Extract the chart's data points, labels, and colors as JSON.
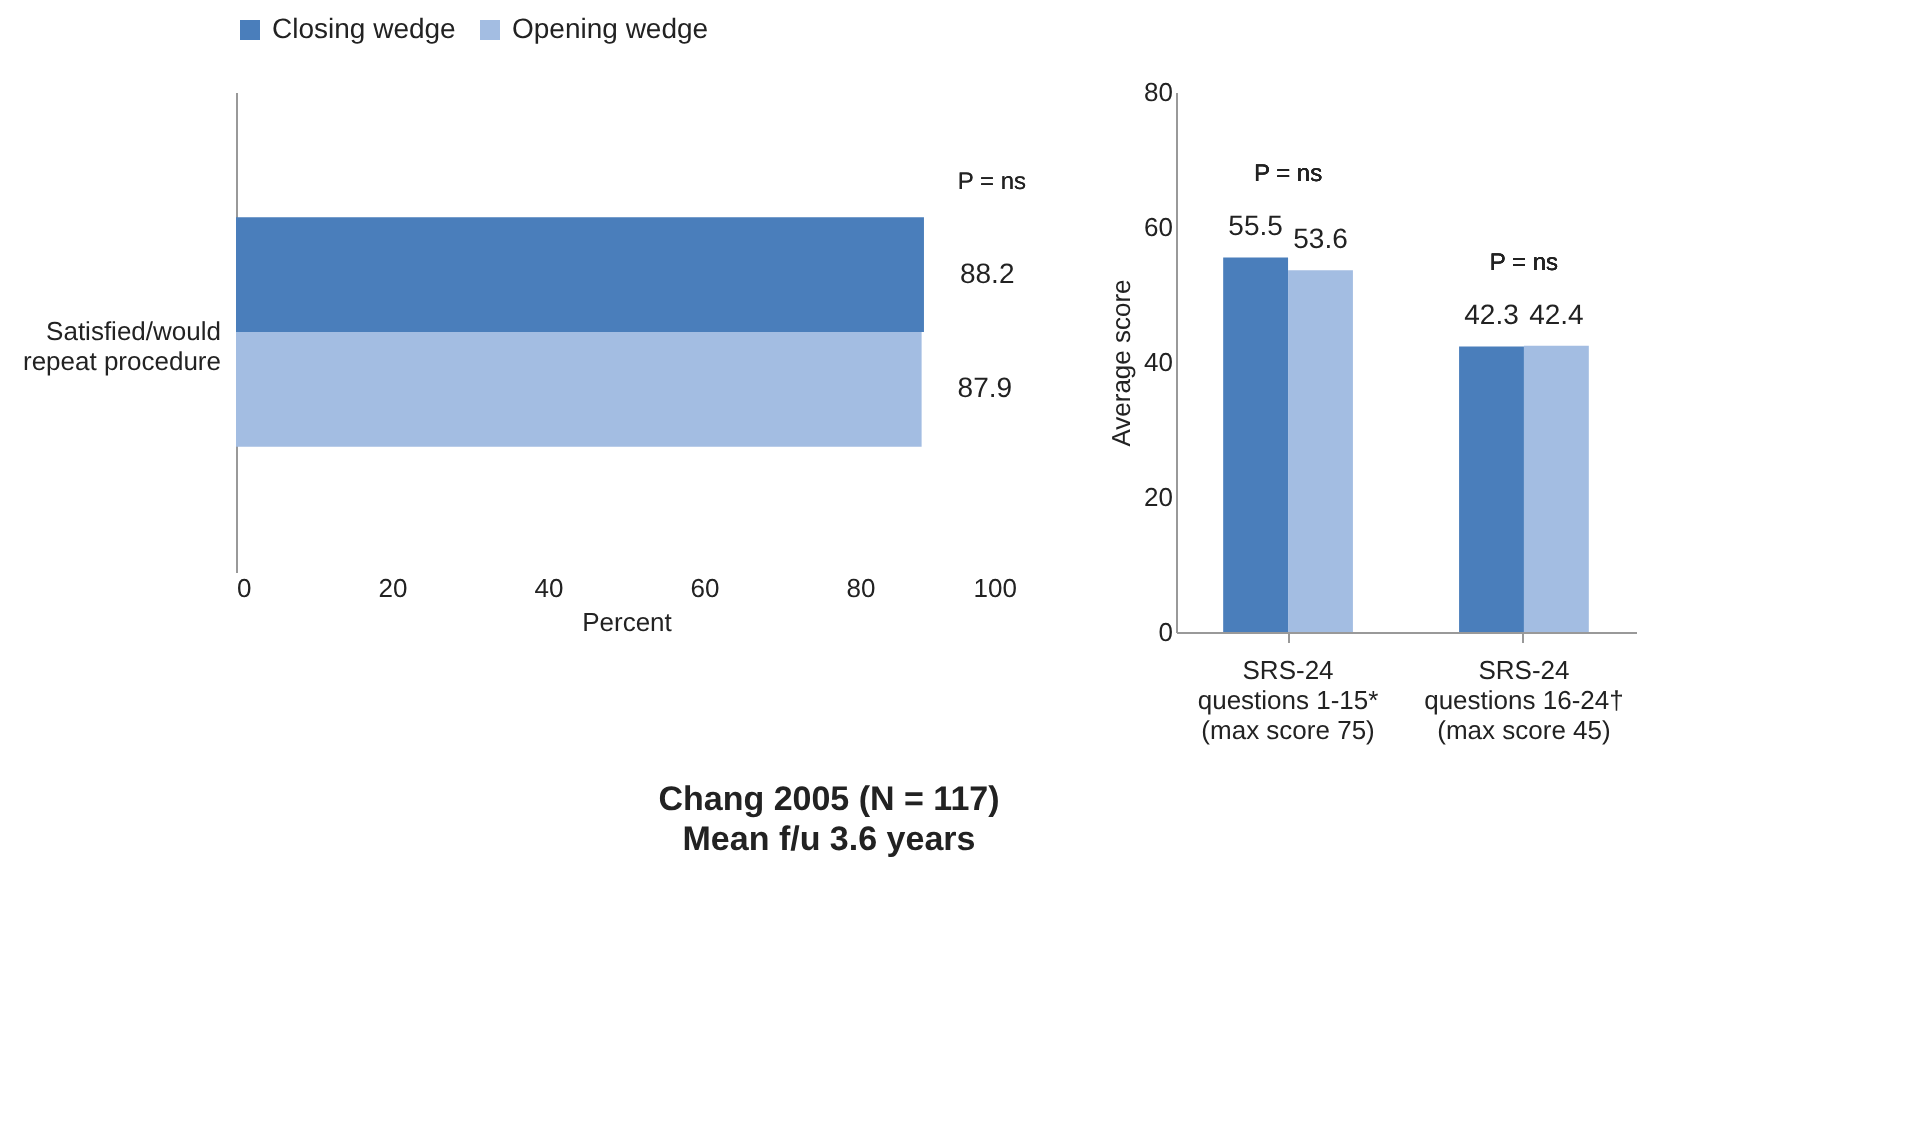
{
  "chart_data": [
    {
      "type": "bar",
      "orientation": "horizontal",
      "title": "Chang 2005 (N = 117)",
      "subtitle": "Mean f/u 3.6 years",
      "xlabel": "Percent",
      "categories": [
        "Satisfied/would\nrepeat procedure"
      ],
      "series": [
        {
          "name": "Closing wedge",
          "color": "#4a7ebb",
          "values": [
            88.2
          ]
        },
        {
          "name": "Opening wedge",
          "color": "#a3bde2",
          "values": [
            87.9
          ]
        }
      ],
      "xlim": [
        0,
        100
      ],
      "xticks": [
        0,
        20,
        40,
        60,
        80,
        100
      ],
      "data_labels": true,
      "legend": "top",
      "annotations": [
        "P = ns"
      ]
    },
    {
      "type": "bar",
      "ylabel": "Average score",
      "categories": [
        "SRS-24\nquestions 1-15*\n(max score 75)",
        "SRS-24\nquestions 16-24†\n(max score 45)"
      ],
      "series": [
        {
          "name": "Closing wedge",
          "color": "#4a7ebb",
          "values": [
            55.5,
            42.3
          ]
        },
        {
          "name": "Opening wedge",
          "color": "#a3bde2",
          "values": [
            53.6,
            42.4
          ]
        }
      ],
      "ylim": [
        0,
        80
      ],
      "yticks": [
        0,
        20,
        40,
        60,
        80
      ],
      "data_labels": true,
      "annotations": [
        "P = ns",
        "P = ns"
      ]
    }
  ]
}
